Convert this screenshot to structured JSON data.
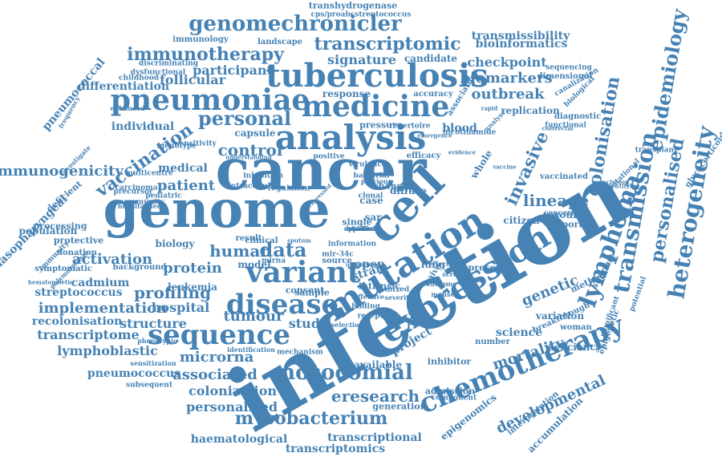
{
  "word_color": "#4682b4",
  "background": "#ffffff",
  "words": [
    "infection",
    "cancer",
    "genome",
    "cell",
    "mutation",
    "expression",
    "analysis",
    "tuberculosis",
    "medicine",
    "pneumoniae",
    "variant",
    "disease",
    "sequence",
    "chemotherapy",
    "nosocomial",
    "lymphoma",
    "transmission",
    "heterogeneity",
    "epidemiology",
    "colonisation",
    "personalised",
    "genomechronicler",
    "transcriptomic",
    "immunotherapy",
    "vaccination",
    "mycobacterium",
    "personal",
    "data",
    "human",
    "profiling",
    "implementation",
    "tumour",
    "invasive",
    "immunogenicity",
    "lineage",
    "genetic",
    "control",
    "eresearch",
    "developmental",
    "microrna",
    "associated",
    "mortality",
    "activation",
    "science",
    "transcriptome",
    "study",
    "structure",
    "hospital",
    "patient",
    "protein",
    "outbreak",
    "biomarkers",
    "signature",
    "checkpoint",
    "bioinformatics",
    "transmissibility",
    "participant",
    "follicular",
    "differentiation",
    "lymphoblastic",
    "pneumococcus",
    "colonization",
    "personalized",
    "haematological",
    "transcriptional",
    "transcriptomics",
    "streptococcus",
    "recolonisation",
    "cadmium",
    "leukemia",
    "medical",
    "individual",
    "pneumococcal",
    "nasopharyngeal",
    "population",
    "biology",
    "epigenomics",
    "accumulation",
    "epigenetic",
    "glucocorticoid",
    "deficiency",
    "variation",
    "project",
    "open",
    "strain",
    "lung",
    "naive",
    "whole",
    "blood",
    "replication",
    "citizen",
    "report",
    "resource",
    "case",
    "sar",
    "model",
    "sample",
    "consent",
    "available",
    "inhibitor",
    "admission",
    "generation",
    "method",
    "support",
    "pressure",
    "capsule",
    "response",
    "accuracy",
    "candidate",
    "landscape",
    "immunology",
    "transhydrogenase",
    "cps/proabcstreptococcus",
    "discriminating",
    "dysfunctional",
    "childhood",
    "dimensional",
    "sequencing",
    "canalization",
    "biological",
    "diagnostic",
    "functional",
    "transplant",
    "conclusion",
    "identifying",
    "vaccinated",
    "concern",
    "deficient",
    "processing",
    "protective",
    "donation",
    "immunity",
    "polymorphism",
    "hematopoietic",
    "symptomatic",
    "background",
    "genotype",
    "sensitivity",
    "multicentre",
    "pediatric",
    "carcinoma",
    "precursor",
    "community",
    "inhibition",
    "intracellular",
    "regulation",
    "positive",
    "virulence",
    "bacterial",
    "change",
    "diffuse",
    "clonal",
    "single",
    "novel",
    "result",
    "clinical",
    "information",
    "mir-34c",
    "source",
    "mirna",
    "intrinsic",
    "mixed",
    "finding",
    "receptor",
    "selection",
    "effective",
    "severity",
    "efficacy",
    "effect",
    "outcome",
    "mouse",
    "screen",
    "present",
    "number",
    "woman",
    "potential",
    "significant",
    "mutational",
    "breakthrough",
    "interpretation",
    "phenotypic",
    "sensitization",
    "identification",
    "mechanism",
    "subsequent",
    "component",
    "repertoire",
    "nicotinamide",
    "association",
    "analyse",
    "rapid",
    "vaccine",
    "colorectal",
    "enhanced",
    "frequency",
    "investigate",
    "hospitalised",
    "ubiquitous",
    "understanding",
    "expressed",
    "sputum",
    "emergence",
    "evidence",
    "previous",
    "studies",
    "detection",
    "reactive",
    "approach"
  ]
}
